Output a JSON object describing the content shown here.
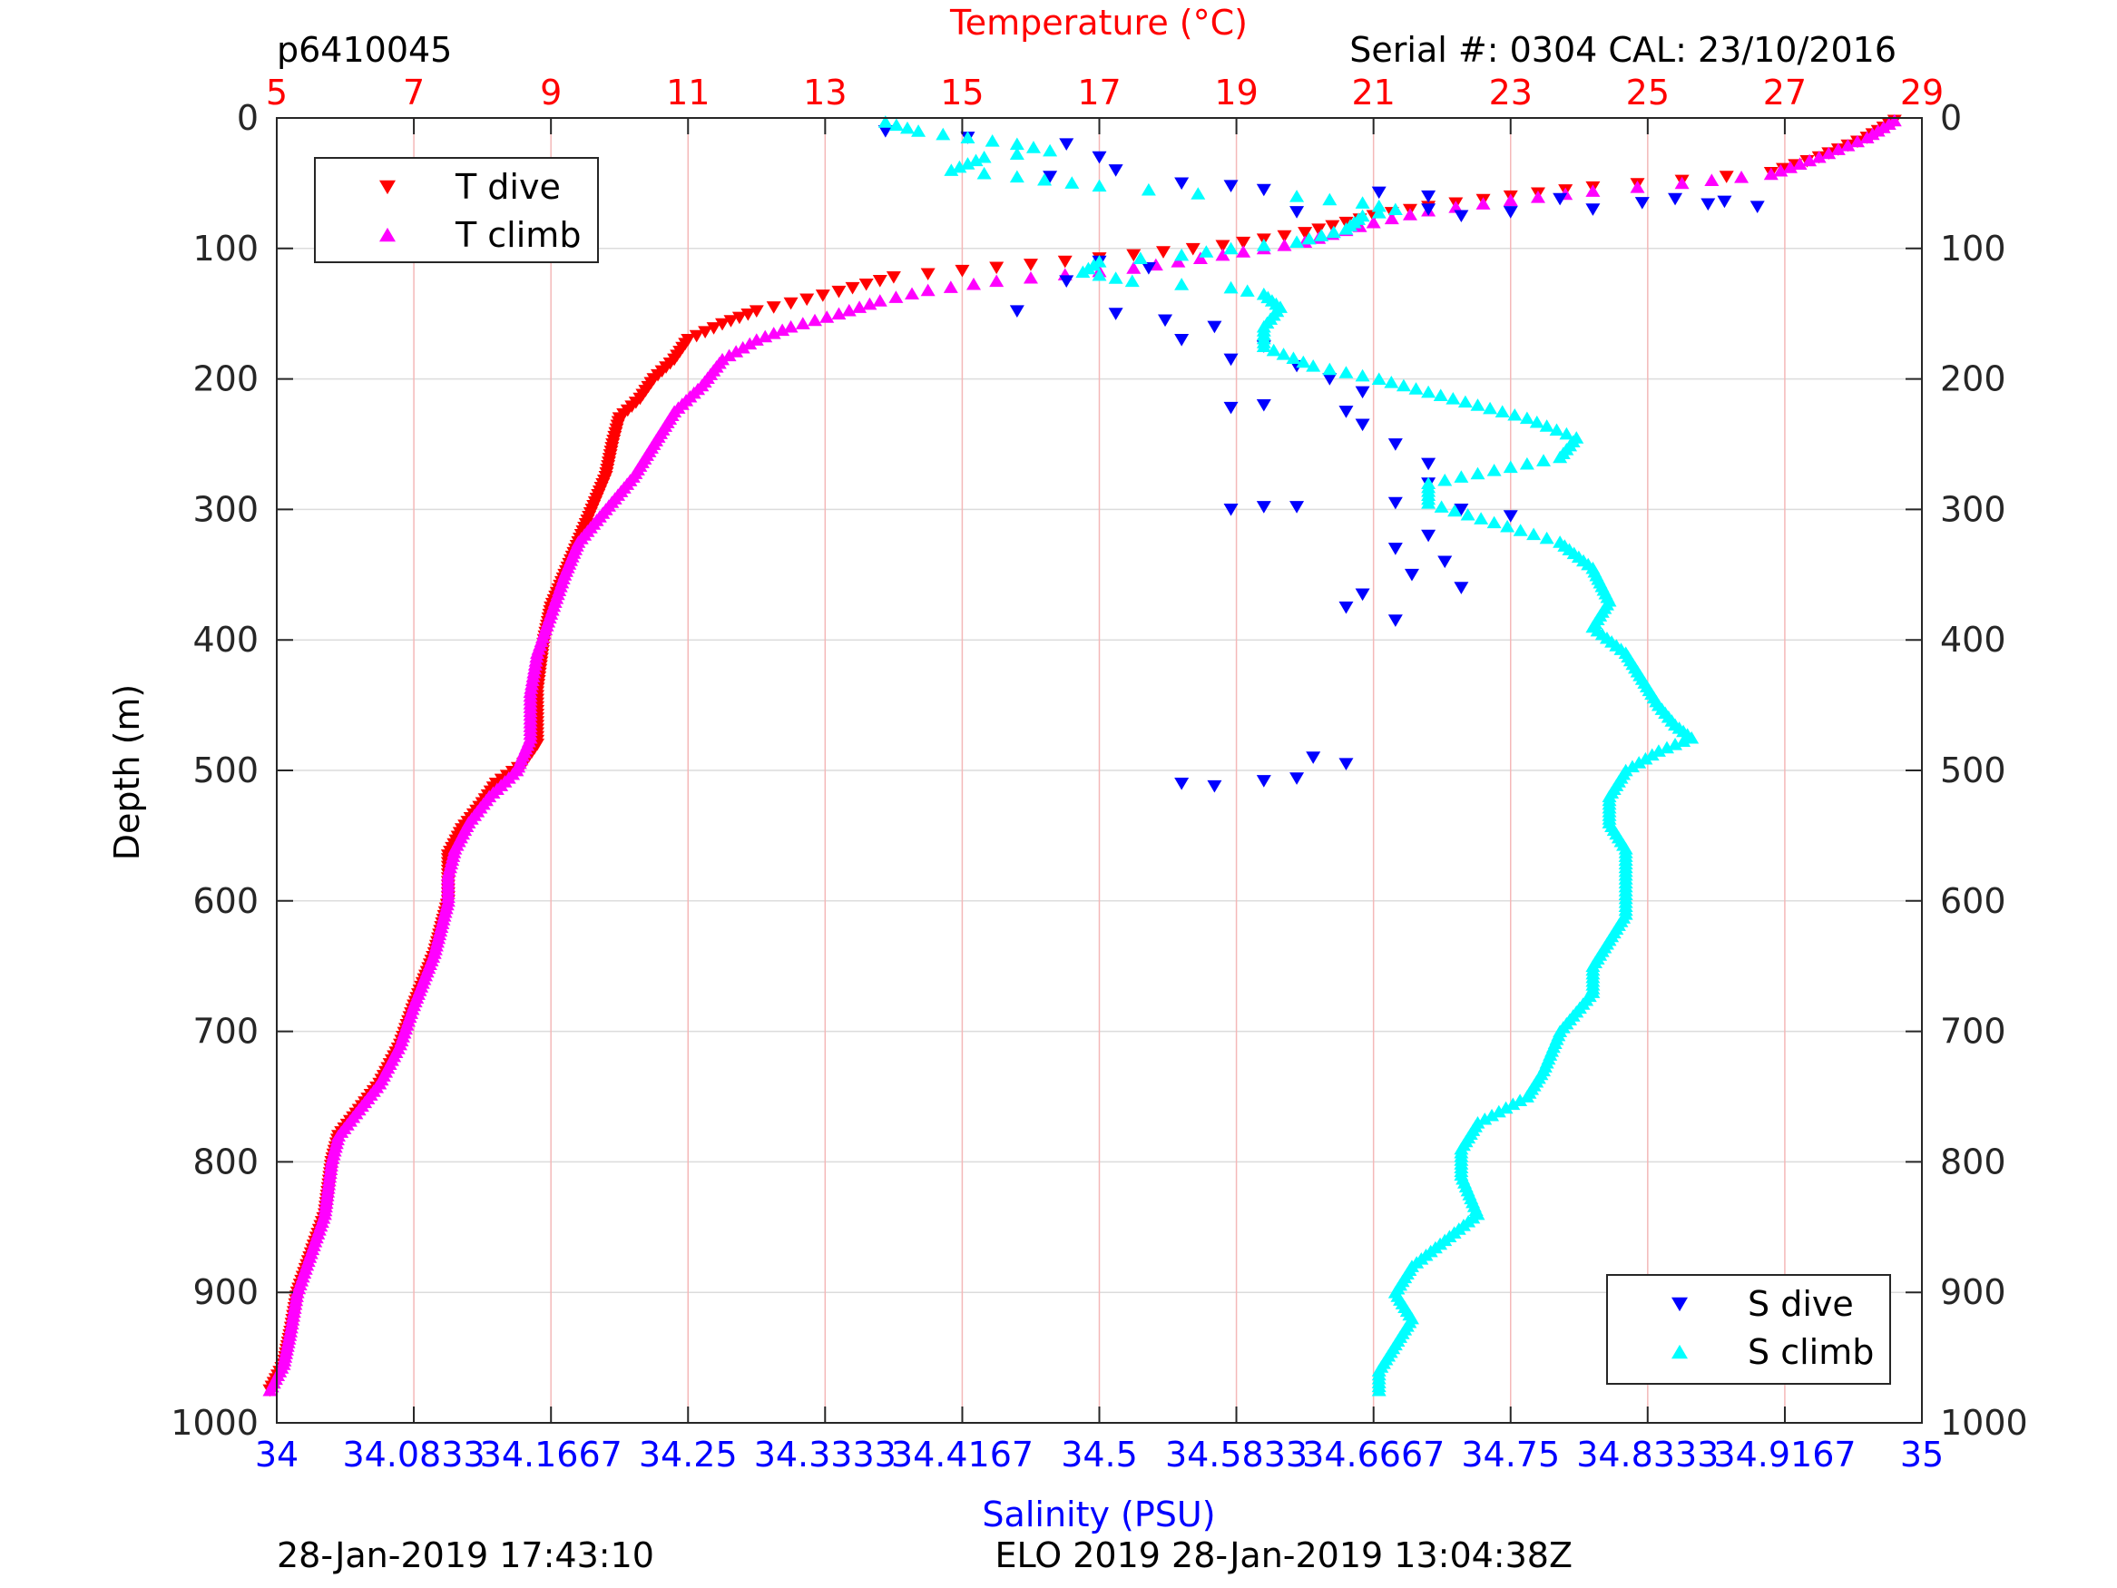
{
  "header": {
    "profile_id": "p6410045",
    "serial_cal": "Serial #: 0304  CAL: 23/10/2016"
  },
  "footer": {
    "left_timestamp": "28-Jan-2019 17:43:10",
    "center_info": "ELO 2019 28-Jan-2019 13:04:38Z"
  },
  "colors": {
    "t_dive": "#ff0000",
    "t_climb": "#ff00ff",
    "s_dive": "#0000ff",
    "s_climb": "#00ffff",
    "temp_axis": "#ff0000",
    "sal_axis": "#0000ff",
    "grid": "#f4b8b8"
  },
  "chart_data": {
    "type": "scatter",
    "y_label": "Depth (m)",
    "top_x_label": "Temperature (°C)",
    "bottom_x_label": "Salinity (PSU)",
    "ylim": [
      0,
      1000
    ],
    "y_reversed": true,
    "y_ticks": [
      0,
      100,
      200,
      300,
      400,
      500,
      600,
      700,
      800,
      900,
      1000
    ],
    "temp_lim": [
      5,
      29
    ],
    "temp_ticks": [
      5,
      7,
      9,
      11,
      13,
      15,
      17,
      19,
      21,
      23,
      25,
      27,
      29
    ],
    "sal_lim": [
      34,
      35
    ],
    "sal_ticks": [
      34,
      34.0833,
      34.1667,
      34.25,
      34.3333,
      34.4167,
      34.5,
      34.5833,
      34.6667,
      34.75,
      34.8333,
      34.9167,
      35
    ],
    "sal_tick_labels": [
      "34",
      "34.0833",
      "34.1667",
      "34.25",
      "34.3333",
      "34.4167",
      "34.5",
      "34.5833",
      "34.6667",
      "34.75",
      "34.8333",
      "34.9167",
      "35"
    ],
    "grid": true,
    "legend_temp": {
      "placement": "top-left",
      "entries": [
        "T dive",
        "T climb"
      ]
    },
    "legend_sal": {
      "placement": "bottom-right",
      "entries": [
        "S dive",
        "S climb"
      ]
    },
    "series": [
      {
        "name": "T dive",
        "axis": "temperature",
        "marker": "triangle-down",
        "points": [
          [
            28.6,
            2
          ],
          [
            28.2,
            15
          ],
          [
            27.5,
            30
          ],
          [
            26.8,
            42
          ],
          [
            25.5,
            48
          ],
          [
            24.2,
            53
          ],
          [
            23.0,
            60
          ],
          [
            21.8,
            68
          ],
          [
            21.0,
            75
          ],
          [
            20.0,
            88
          ],
          [
            18.8,
            98
          ],
          [
            17.5,
            105
          ],
          [
            16.5,
            110
          ],
          [
            15.0,
            117
          ],
          [
            14.0,
            122
          ],
          [
            13.2,
            133
          ],
          [
            12.5,
            142
          ],
          [
            12.0,
            148
          ],
          [
            11.5,
            158
          ],
          [
            11.0,
            170
          ],
          [
            10.8,
            185
          ],
          [
            10.5,
            200
          ],
          [
            10.3,
            215
          ],
          [
            10.0,
            230
          ],
          [
            9.9,
            250
          ],
          [
            9.8,
            275
          ],
          [
            9.6,
            300
          ],
          [
            9.4,
            325
          ],
          [
            9.2,
            350
          ],
          [
            9.0,
            375
          ],
          [
            8.9,
            400
          ],
          [
            8.8,
            440
          ],
          [
            8.8,
            480
          ],
          [
            8.6,
            495
          ],
          [
            8.2,
            510
          ],
          [
            8.0,
            525
          ],
          [
            7.7,
            545
          ],
          [
            7.5,
            565
          ],
          [
            7.5,
            600
          ],
          [
            7.3,
            640
          ],
          [
            7.0,
            680
          ],
          [
            6.8,
            710
          ],
          [
            6.5,
            740
          ],
          [
            6.2,
            760
          ],
          [
            5.9,
            780
          ],
          [
            5.8,
            800
          ],
          [
            5.7,
            840
          ],
          [
            5.5,
            870
          ],
          [
            5.3,
            900
          ],
          [
            5.2,
            930
          ],
          [
            5.1,
            955
          ],
          [
            4.9,
            975
          ]
        ]
      },
      {
        "name": "T climb",
        "axis": "temperature",
        "marker": "triangle-up",
        "points": [
          [
            28.6,
            2
          ],
          [
            28.2,
            15
          ],
          [
            27.5,
            30
          ],
          [
            26.8,
            43
          ],
          [
            25.5,
            50
          ],
          [
            24.2,
            56
          ],
          [
            23.0,
            63
          ],
          [
            21.8,
            71
          ],
          [
            21.0,
            80
          ],
          [
            20.0,
            95
          ],
          [
            18.8,
            105
          ],
          [
            17.5,
            115
          ],
          [
            16.5,
            120
          ],
          [
            15.5,
            125
          ],
          [
            14.5,
            132
          ],
          [
            13.8,
            140
          ],
          [
            13.2,
            150
          ],
          [
            12.5,
            160
          ],
          [
            12.0,
            170
          ],
          [
            11.5,
            185
          ],
          [
            11.2,
            205
          ],
          [
            10.8,
            225
          ],
          [
            10.5,
            250
          ],
          [
            10.2,
            275
          ],
          [
            9.8,
            300
          ],
          [
            9.4,
            325
          ],
          [
            9.2,
            350
          ],
          [
            9.0,
            380
          ],
          [
            8.8,
            410
          ],
          [
            8.7,
            440
          ],
          [
            8.7,
            475
          ],
          [
            8.5,
            500
          ],
          [
            8.1,
            520
          ],
          [
            7.8,
            540
          ],
          [
            7.6,
            560
          ],
          [
            7.5,
            580
          ],
          [
            7.5,
            600
          ],
          [
            7.3,
            640
          ],
          [
            7.0,
            680
          ],
          [
            6.8,
            710
          ],
          [
            6.5,
            740
          ],
          [
            6.2,
            760
          ],
          [
            5.9,
            780
          ],
          [
            5.8,
            800
          ],
          [
            5.7,
            840
          ],
          [
            5.5,
            870
          ],
          [
            5.3,
            900
          ],
          [
            5.2,
            930
          ],
          [
            5.1,
            955
          ],
          [
            4.9,
            975
          ]
        ]
      },
      {
        "name": "S dive",
        "axis": "salinity",
        "marker": "triangle-down",
        "points": [
          [
            34.37,
            10
          ],
          [
            34.42,
            15
          ],
          [
            34.48,
            20
          ],
          [
            34.5,
            30
          ],
          [
            34.51,
            40
          ],
          [
            34.47,
            45
          ],
          [
            34.55,
            50
          ],
          [
            34.58,
            52
          ],
          [
            34.6,
            55
          ],
          [
            34.67,
            57
          ],
          [
            34.7,
            60
          ],
          [
            34.78,
            62
          ],
          [
            34.85,
            62
          ],
          [
            34.88,
            64
          ],
          [
            34.87,
            66
          ],
          [
            34.83,
            65
          ],
          [
            34.9,
            68
          ],
          [
            34.8,
            70
          ],
          [
            34.75,
            72
          ],
          [
            34.72,
            75
          ],
          [
            34.7,
            70
          ],
          [
            34.62,
            72
          ],
          [
            34.5,
            110
          ],
          [
            34.53,
            115
          ],
          [
            34.48,
            125
          ],
          [
            34.45,
            148
          ],
          [
            34.51,
            150
          ],
          [
            34.54,
            155
          ],
          [
            34.57,
            160
          ],
          [
            34.55,
            170
          ],
          [
            34.6,
            175
          ],
          [
            34.58,
            185
          ],
          [
            34.62,
            190
          ],
          [
            34.64,
            200
          ],
          [
            34.66,
            210
          ],
          [
            34.6,
            220
          ],
          [
            34.58,
            222
          ],
          [
            34.65,
            225
          ],
          [
            34.66,
            235
          ],
          [
            34.68,
            250
          ],
          [
            34.7,
            265
          ],
          [
            34.7,
            280
          ],
          [
            34.68,
            295
          ],
          [
            34.62,
            298
          ],
          [
            34.6,
            298
          ],
          [
            34.58,
            300
          ],
          [
            34.72,
            300
          ],
          [
            34.75,
            305
          ],
          [
            34.7,
            320
          ],
          [
            34.68,
            330
          ],
          [
            34.71,
            340
          ],
          [
            34.69,
            350
          ],
          [
            34.72,
            360
          ],
          [
            34.66,
            365
          ],
          [
            34.65,
            375
          ],
          [
            34.68,
            385
          ],
          [
            34.63,
            490
          ],
          [
            34.65,
            495
          ],
          [
            34.55,
            510
          ],
          [
            34.57,
            512
          ],
          [
            34.6,
            508
          ],
          [
            34.62,
            506
          ]
        ]
      },
      {
        "name": "S climb",
        "axis": "salinity",
        "marker": "triangle-up",
        "points": [
          [
            34.37,
            3
          ],
          [
            34.39,
            10
          ],
          [
            34.42,
            15
          ],
          [
            34.45,
            20
          ],
          [
            34.47,
            25
          ],
          [
            34.43,
            30
          ],
          [
            34.41,
            40
          ],
          [
            34.45,
            45
          ],
          [
            34.5,
            52
          ],
          [
            34.56,
            58
          ],
          [
            34.62,
            60
          ],
          [
            34.66,
            65
          ],
          [
            34.68,
            70
          ],
          [
            34.66,
            75
          ],
          [
            34.65,
            85
          ],
          [
            34.62,
            95
          ],
          [
            34.58,
            100
          ],
          [
            34.55,
            105
          ],
          [
            34.5,
            110
          ],
          [
            34.49,
            118
          ],
          [
            34.52,
            125
          ],
          [
            34.58,
            130
          ],
          [
            34.6,
            135
          ],
          [
            34.61,
            145
          ],
          [
            34.6,
            160
          ],
          [
            34.6,
            175
          ],
          [
            34.63,
            190
          ],
          [
            34.67,
            200
          ],
          [
            34.7,
            210
          ],
          [
            34.73,
            220
          ],
          [
            34.76,
            230
          ],
          [
            34.79,
            245
          ],
          [
            34.78,
            260
          ],
          [
            34.74,
            270
          ],
          [
            34.7,
            280
          ],
          [
            34.7,
            295
          ],
          [
            34.74,
            310
          ],
          [
            34.78,
            325
          ],
          [
            34.8,
            345
          ],
          [
            34.81,
            370
          ],
          [
            34.8,
            390
          ],
          [
            34.82,
            410
          ],
          [
            34.83,
            430
          ],
          [
            34.84,
            450
          ],
          [
            34.85,
            465
          ],
          [
            34.86,
            475
          ],
          [
            34.84,
            485
          ],
          [
            34.82,
            500
          ],
          [
            34.81,
            520
          ],
          [
            34.81,
            540
          ],
          [
            34.82,
            560
          ],
          [
            34.82,
            580
          ],
          [
            34.82,
            610
          ],
          [
            34.81,
            630
          ],
          [
            34.8,
            650
          ],
          [
            34.8,
            670
          ],
          [
            34.78,
            700
          ],
          [
            34.77,
            730
          ],
          [
            34.76,
            750
          ],
          [
            34.73,
            770
          ],
          [
            34.72,
            790
          ],
          [
            34.72,
            810
          ],
          [
            34.73,
            840
          ],
          [
            34.71,
            860
          ],
          [
            34.69,
            880
          ],
          [
            34.68,
            900
          ],
          [
            34.69,
            920
          ],
          [
            34.68,
            940
          ],
          [
            34.67,
            960
          ],
          [
            34.67,
            975
          ]
        ]
      }
    ]
  }
}
